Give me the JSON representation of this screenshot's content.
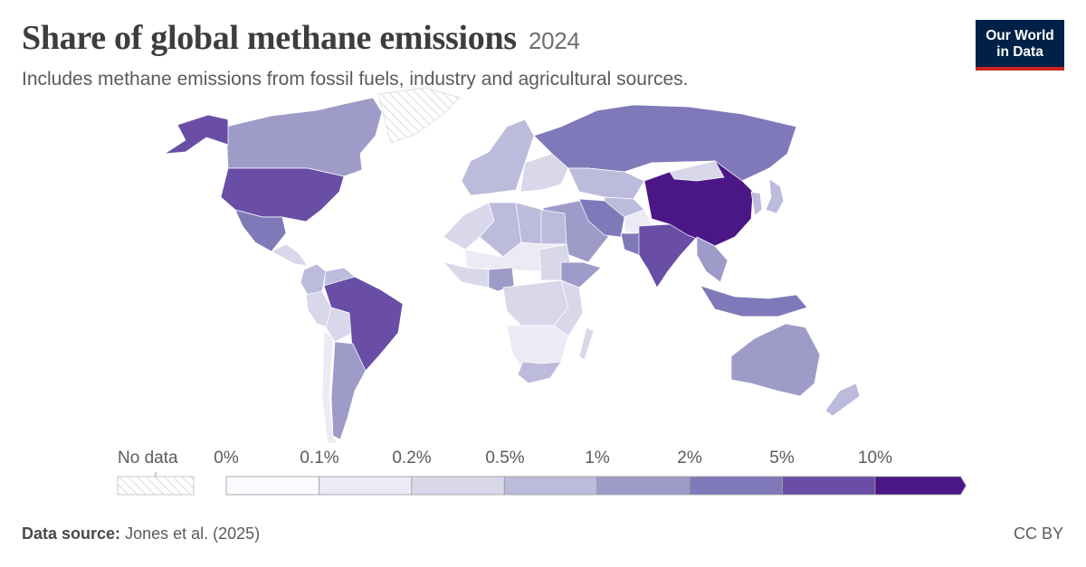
{
  "title": "Share of global methane emissions",
  "year": "2024",
  "subtitle": "Includes methane emissions from fossil fuels, industry and agricultural sources.",
  "logo": {
    "line1": "Our World",
    "line2": "in Data"
  },
  "legend": {
    "no_data_label": "No data",
    "ticks": [
      "0%",
      "0.1%",
      "0.2%",
      "0.5%",
      "1%",
      "2%",
      "5%",
      "10%"
    ],
    "bins": [
      {
        "range": "0–0.1%",
        "color": "#fbfaff"
      },
      {
        "range": "0.1–0.2%",
        "color": "#eceaf5"
      },
      {
        "range": "0.2–0.5%",
        "color": "#d9d8ea"
      },
      {
        "range": "0.5–1%",
        "color": "#bcbbdc"
      },
      {
        "range": "1–2%",
        "color": "#9e9bc9"
      },
      {
        "range": "2–5%",
        "color": "#8079b9"
      },
      {
        "range": "5–10%",
        "color": "#6a4ea5"
      },
      {
        "range": ">10%",
        "color": "#4b1787"
      }
    ]
  },
  "regions": [
    {
      "name": "Canada",
      "bin": 4
    },
    {
      "name": "Alaska (United States)",
      "bin": 6
    },
    {
      "name": "United States",
      "bin": 6
    },
    {
      "name": "Mexico",
      "bin": 5
    },
    {
      "name": "Greenland",
      "bin": -1
    },
    {
      "name": "Central America",
      "bin": 2
    },
    {
      "name": "Colombia",
      "bin": 3
    },
    {
      "name": "Venezuela",
      "bin": 3
    },
    {
      "name": "Peru",
      "bin": 2
    },
    {
      "name": "Bolivia",
      "bin": 2
    },
    {
      "name": "Brazil",
      "bin": 6
    },
    {
      "name": "Argentina",
      "bin": 4
    },
    {
      "name": "Chile",
      "bin": 1
    },
    {
      "name": "Western Europe",
      "bin": 3
    },
    {
      "name": "Eastern Europe",
      "bin": 2
    },
    {
      "name": "Russia",
      "bin": 5
    },
    {
      "name": "Kazakhstan",
      "bin": 3
    },
    {
      "name": "Central Asia",
      "bin": 3
    },
    {
      "name": "Middle East",
      "bin": 4
    },
    {
      "name": "Iran",
      "bin": 5
    },
    {
      "name": "Afghanistan",
      "bin": 1
    },
    {
      "name": "Pakistan",
      "bin": 5
    },
    {
      "name": "India",
      "bin": 6
    },
    {
      "name": "China",
      "bin": 7
    },
    {
      "name": "Mongolia",
      "bin": 2
    },
    {
      "name": "Korea",
      "bin": 3
    },
    {
      "name": "Japan",
      "bin": 3
    },
    {
      "name": "Southeast Asia",
      "bin": 4
    },
    {
      "name": "Indonesia",
      "bin": 5
    },
    {
      "name": "Australia",
      "bin": 4
    },
    {
      "name": "New Zealand",
      "bin": 3
    },
    {
      "name": "North Africa",
      "bin": 2
    },
    {
      "name": "Algeria",
      "bin": 3
    },
    {
      "name": "Libya",
      "bin": 3
    },
    {
      "name": "Egypt",
      "bin": 3
    },
    {
      "name": "Sahel",
      "bin": 1
    },
    {
      "name": "West Africa",
      "bin": 2
    },
    {
      "name": "Nigeria",
      "bin": 4
    },
    {
      "name": "Sudan",
      "bin": 2
    },
    {
      "name": "Ethiopia",
      "bin": 4
    },
    {
      "name": "Central Africa",
      "bin": 2
    },
    {
      "name": "East Africa",
      "bin": 2
    },
    {
      "name": "Southern Africa",
      "bin": 1
    },
    {
      "name": "South Africa",
      "bin": 3
    },
    {
      "name": "Madagascar",
      "bin": 2
    }
  ],
  "footer": {
    "source_label": "Data source:",
    "source_text": "Jones et al. (2025)",
    "license": "CC BY"
  }
}
